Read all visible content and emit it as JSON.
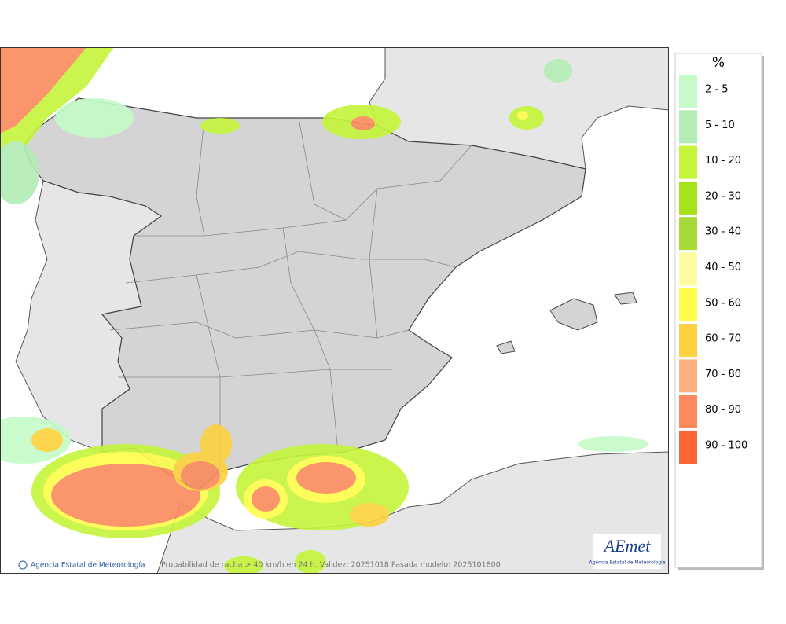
{
  "map": {
    "copyright": "Agencia Estatal de Meteorología",
    "caption": "Probabilidad de racha > 40 km/h en 24 h. Validez: 20251018 Pasada modelo: 2025101800",
    "logo": {
      "name": "AEmet",
      "subtitle": "Agencia Estatal de Meteorología"
    }
  },
  "legend": {
    "title": "%",
    "items": [
      {
        "label": "2 - 5",
        "color": "#c5fbc8"
      },
      {
        "label": "5 - 10",
        "color": "#b3ecb5"
      },
      {
        "label": "10 - 20",
        "color": "#c4f53a"
      },
      {
        "label": "20 - 30",
        "color": "#a4e21a"
      },
      {
        "label": "30 - 40",
        "color": "#a6d93a"
      },
      {
        "label": "40 - 50",
        "color": "#fffca0"
      },
      {
        "label": "50 - 60",
        "color": "#fdfd4b"
      },
      {
        "label": "60 - 70",
        "color": "#fdd23e"
      },
      {
        "label": "70 - 80",
        "color": "#fcb082"
      },
      {
        "label": "80 - 90",
        "color": "#fb8a5c"
      },
      {
        "label": "90 - 100",
        "color": "#ff6535"
      }
    ]
  }
}
